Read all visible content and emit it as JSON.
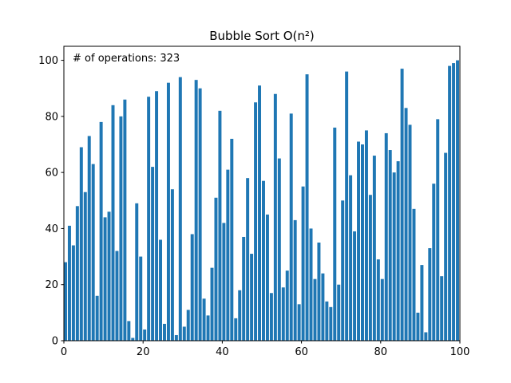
{
  "chart_data": {
    "type": "bar",
    "title": "Bubble Sort O(n²)",
    "annotation": "# of operations: 323",
    "x": [
      0,
      1,
      2,
      3,
      4,
      5,
      6,
      7,
      8,
      9,
      10,
      11,
      12,
      13,
      14,
      15,
      16,
      17,
      18,
      19,
      20,
      21,
      22,
      23,
      24,
      25,
      26,
      27,
      28,
      29,
      30,
      31,
      32,
      33,
      34,
      35,
      36,
      37,
      38,
      39,
      40,
      41,
      42,
      43,
      44,
      45,
      46,
      47,
      48,
      49,
      50,
      51,
      52,
      53,
      54,
      55,
      56,
      57,
      58,
      59,
      60,
      61,
      62,
      63,
      64,
      65,
      66,
      67,
      68,
      69,
      70,
      71,
      72,
      73,
      74,
      75,
      76,
      77,
      78,
      79,
      80,
      81,
      82,
      83,
      84,
      85,
      86,
      87,
      88,
      89,
      90,
      91,
      92,
      93,
      94,
      95,
      96,
      97,
      98,
      99
    ],
    "values": [
      28,
      41,
      34,
      48,
      69,
      53,
      73,
      63,
      16,
      78,
      44,
      46,
      84,
      32,
      80,
      86,
      7,
      1,
      49,
      30,
      4,
      87,
      62,
      89,
      36,
      6,
      92,
      54,
      2,
      94,
      5,
      11,
      38,
      93,
      90,
      15,
      9,
      26,
      51,
      82,
      42,
      61,
      72,
      8,
      18,
      37,
      58,
      31,
      85,
      91,
      57,
      45,
      17,
      88,
      65,
      19,
      25,
      81,
      43,
      13,
      55,
      95,
      40,
      22,
      35,
      24,
      14,
      12,
      76,
      20,
      50,
      96,
      59,
      39,
      71,
      70,
      75,
      52,
      66,
      29,
      22,
      74,
      68,
      60,
      64,
      97,
      83,
      77,
      47,
      10,
      27,
      3,
      33,
      56,
      79,
      23,
      67,
      98,
      99,
      100
    ],
    "color": "#1f77b4",
    "xlim": [
      0,
      100
    ],
    "ylim": [
      0,
      105
    ],
    "xticks": [
      0,
      20,
      40,
      60,
      80,
      100
    ],
    "yticks": [
      0,
      20,
      40,
      60,
      80,
      100
    ],
    "grid": false
  }
}
